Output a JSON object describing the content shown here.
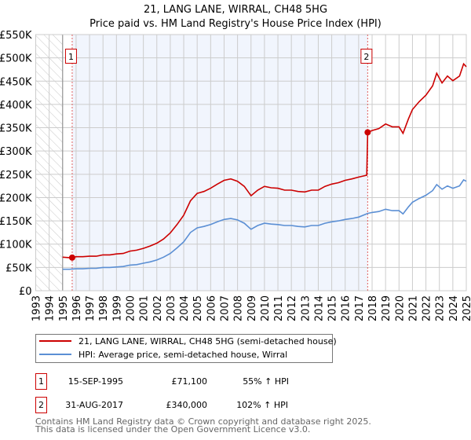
{
  "chart_data": {
    "type": "line",
    "title": "21, LANG LANE, WIRRAL, CH48 5HG",
    "subtitle": "Price paid vs. HM Land Registry's House Price Index (HPI)",
    "xlim": [
      1993,
      2025
    ],
    "ylim": [
      0,
      550000
    ],
    "x_ticks": [
      "1993",
      "1994",
      "1995",
      "1996",
      "1997",
      "1998",
      "1999",
      "2000",
      "2001",
      "2002",
      "2003",
      "2004",
      "2005",
      "2006",
      "2007",
      "2008",
      "2009",
      "2010",
      "2011",
      "2012",
      "2013",
      "2014",
      "2015",
      "2016",
      "2017",
      "2018",
      "2019",
      "2020",
      "2021",
      "2022",
      "2023",
      "2024",
      "2025"
    ],
    "y_ticks": [
      {
        "value": 0,
        "label": "£0"
      },
      {
        "value": 50000,
        "label": "£50K"
      },
      {
        "value": 100000,
        "label": "£100K"
      },
      {
        "value": 150000,
        "label": "£150K"
      },
      {
        "value": 200000,
        "label": "£200K"
      },
      {
        "value": 250000,
        "label": "£250K"
      },
      {
        "value": 300000,
        "label": "£300K"
      },
      {
        "value": 350000,
        "label": "£350K"
      },
      {
        "value": 400000,
        "label": "£400K"
      },
      {
        "value": 450000,
        "label": "£450K"
      },
      {
        "value": 500000,
        "label": "£500K"
      },
      {
        "value": 550000,
        "label": "£550K"
      }
    ],
    "grid": true,
    "no_data_before": 1995,
    "series": [
      {
        "name": "21, LANG LANE, WIRRAL, CH48 5HG (semi-detached house)",
        "color": "#cc0000",
        "unit": "K",
        "points": [
          [
            1995,
            72
          ],
          [
            1995.5,
            71
          ],
          [
            1995.71,
            71.1
          ],
          [
            1996,
            73
          ],
          [
            1996.5,
            73
          ],
          [
            1997,
            74
          ],
          [
            1997.5,
            74
          ],
          [
            1998,
            77
          ],
          [
            1998.5,
            77
          ],
          [
            1999,
            79
          ],
          [
            1999.5,
            80
          ],
          [
            2000,
            85
          ],
          [
            2000.5,
            87
          ],
          [
            2001,
            91
          ],
          [
            2001.5,
            96
          ],
          [
            2002,
            102
          ],
          [
            2002.5,
            111
          ],
          [
            2003,
            124
          ],
          [
            2003.5,
            142
          ],
          [
            2004,
            162
          ],
          [
            2004.5,
            193
          ],
          [
            2005,
            209
          ],
          [
            2005.5,
            213
          ],
          [
            2006,
            220
          ],
          [
            2006.5,
            229
          ],
          [
            2007,
            237
          ],
          [
            2007.5,
            240
          ],
          [
            2008,
            235
          ],
          [
            2008.5,
            224
          ],
          [
            2009,
            204
          ],
          [
            2009.5,
            216
          ],
          [
            2010,
            224
          ],
          [
            2010.5,
            221
          ],
          [
            2011,
            220
          ],
          [
            2011.5,
            216
          ],
          [
            2012,
            216
          ],
          [
            2012.5,
            213
          ],
          [
            2013,
            212
          ],
          [
            2013.5,
            216
          ],
          [
            2014,
            216
          ],
          [
            2014.5,
            224
          ],
          [
            2015,
            229
          ],
          [
            2015.5,
            232
          ],
          [
            2016,
            237
          ],
          [
            2016.5,
            240
          ],
          [
            2017,
            244
          ],
          [
            2017.6,
            248
          ],
          [
            2017.67,
            340
          ],
          [
            2018,
            344
          ],
          [
            2018.5,
            348
          ],
          [
            2019,
            358
          ],
          [
            2019.5,
            352
          ],
          [
            2020,
            352
          ],
          [
            2020.3,
            338
          ],
          [
            2020.7,
            369
          ],
          [
            2021,
            389
          ],
          [
            2021.5,
            406
          ],
          [
            2022,
            420
          ],
          [
            2022.5,
            440
          ],
          [
            2022.8,
            467
          ],
          [
            2023.2,
            446
          ],
          [
            2023.6,
            461
          ],
          [
            2024,
            451
          ],
          [
            2024.5,
            461
          ],
          [
            2024.8,
            487
          ],
          [
            2025,
            481
          ]
        ]
      },
      {
        "name": "HPI: Average price, semi-detached house, Wirral",
        "color": "#5b8fd4",
        "unit": "K",
        "points": [
          [
            1995,
            46
          ],
          [
            1995.5,
            46
          ],
          [
            1996,
            47
          ],
          [
            1996.5,
            47
          ],
          [
            1997,
            48
          ],
          [
            1997.5,
            48
          ],
          [
            1998,
            50
          ],
          [
            1998.5,
            50
          ],
          [
            1999,
            51
          ],
          [
            1999.5,
            52
          ],
          [
            2000,
            55
          ],
          [
            2000.5,
            56
          ],
          [
            2001,
            59
          ],
          [
            2001.5,
            62
          ],
          [
            2002,
            66
          ],
          [
            2002.5,
            72
          ],
          [
            2003,
            80
          ],
          [
            2003.5,
            92
          ],
          [
            2004,
            105
          ],
          [
            2004.5,
            125
          ],
          [
            2005,
            135
          ],
          [
            2005.5,
            138
          ],
          [
            2006,
            142
          ],
          [
            2006.5,
            148
          ],
          [
            2007,
            153
          ],
          [
            2007.5,
            155
          ],
          [
            2008,
            152
          ],
          [
            2008.5,
            145
          ],
          [
            2009,
            132
          ],
          [
            2009.5,
            140
          ],
          [
            2010,
            145
          ],
          [
            2010.5,
            143
          ],
          [
            2011,
            142
          ],
          [
            2011.5,
            140
          ],
          [
            2012,
            140
          ],
          [
            2012.5,
            138
          ],
          [
            2013,
            137
          ],
          [
            2013.5,
            140
          ],
          [
            2014,
            140
          ],
          [
            2014.5,
            145
          ],
          [
            2015,
            148
          ],
          [
            2015.5,
            150
          ],
          [
            2016,
            153
          ],
          [
            2016.5,
            155
          ],
          [
            2017,
            158
          ],
          [
            2017.67,
            166
          ],
          [
            2018,
            168
          ],
          [
            2018.5,
            170
          ],
          [
            2019,
            175
          ],
          [
            2019.5,
            172
          ],
          [
            2020,
            172
          ],
          [
            2020.3,
            165
          ],
          [
            2020.7,
            180
          ],
          [
            2021,
            190
          ],
          [
            2021.5,
            198
          ],
          [
            2022,
            205
          ],
          [
            2022.5,
            215
          ],
          [
            2022.8,
            228
          ],
          [
            2023.2,
            218
          ],
          [
            2023.6,
            225
          ],
          [
            2024,
            220
          ],
          [
            2024.5,
            225
          ],
          [
            2024.8,
            238
          ],
          [
            2025,
            235
          ]
        ]
      }
    ],
    "sales": [
      {
        "marker": "1",
        "year": 1995.71,
        "value": 71.1,
        "date": "15-SEP-1995",
        "price": "£71,100",
        "hpi": "55% ↑ HPI"
      },
      {
        "marker": "2",
        "year": 2017.67,
        "value": 340,
        "date": "31-AUG-2017",
        "price": "£340,000",
        "hpi": "102% ↑ HPI"
      }
    ],
    "legend_position": "bottom"
  },
  "footer": {
    "line1": "Contains HM Land Registry data © Crown copyright and database right 2025.",
    "line2": "This data is licensed under the Open Government Licence v3.0."
  }
}
